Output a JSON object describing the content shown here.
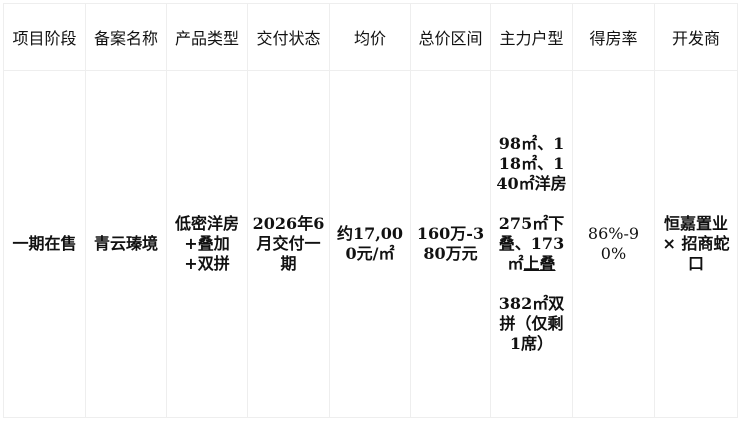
{
  "headers": [
    "项目阶段",
    "备案名称",
    "产品类型",
    "交付状态",
    "均价",
    "总价区间",
    "主力户型",
    "得房率",
    "开发商"
  ],
  "row": {
    "stage": "一期在售",
    "name": "青云瑧境",
    "product_type": "低密洋房+叠加+双拼",
    "delivery": "2026年6月交付一期",
    "avg_price": "约17,000元/㎡",
    "total_price": "160万-380万元",
    "units": {
      "p1": "98㎡、118㎡、140㎡洋房",
      "p2a": "275㎡下叠、173㎡",
      "p2b": "上叠",
      "p3": "382㎡双拼（仅剩1席）"
    },
    "ratio": "86%-90%",
    "developer": "恒嘉置业 × 招商蛇口"
  }
}
